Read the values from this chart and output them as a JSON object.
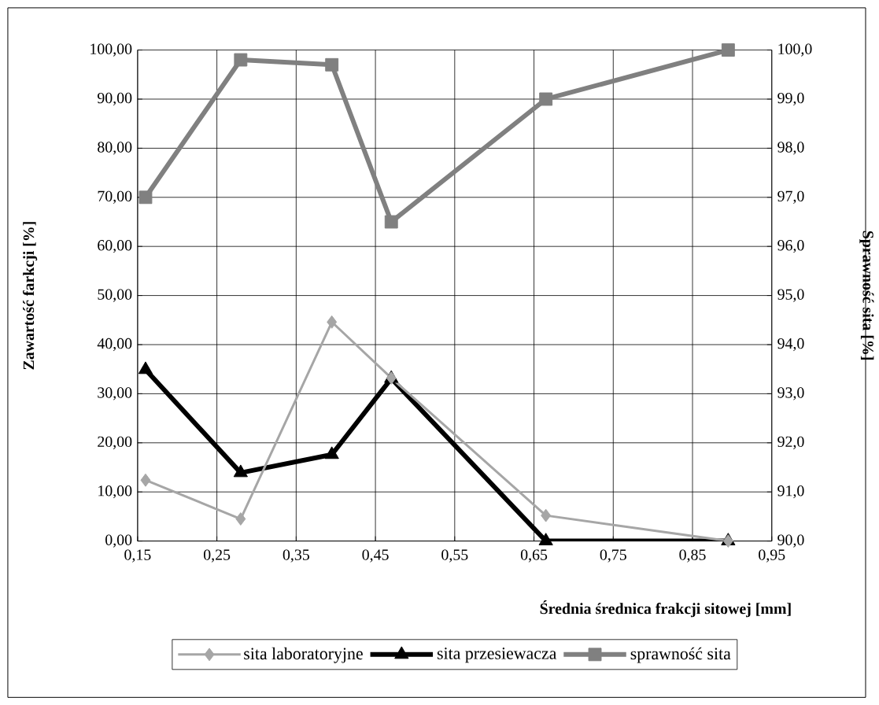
{
  "chart_data": {
    "type": "line",
    "xlabel": "Średnia średnica frakcji sitowej [mm]",
    "ylabel": "Zawartość farkcji [%]",
    "y2label": "Sprawność sita  [%]",
    "x": [
      0.16,
      0.28,
      0.395,
      0.47,
      0.665,
      0.895
    ],
    "series": [
      {
        "name": "sita laboratoryjne",
        "color": "#a6a6a6",
        "marker": "diamond",
        "values": [
          12.4,
          4.5,
          44.6,
          33.2,
          5.2,
          0
        ]
      },
      {
        "name": "sita przesiewacza",
        "color": "#000000",
        "marker": "triangle",
        "values": [
          34.9,
          13.9,
          17.6,
          33.1,
          0,
          0
        ]
      },
      {
        "name": "sprawność sita",
        "color": "#808080",
        "marker": "square",
        "axis": "y2",
        "values": [
          97.0,
          99.8,
          99.7,
          96.5,
          99.0,
          100.0
        ]
      }
    ],
    "xlim": [
      0.15,
      0.95
    ],
    "xticks": [
      {
        "value": 0.15,
        "label": "0,15"
      },
      {
        "value": 0.25,
        "label": "0,25"
      },
      {
        "value": 0.35,
        "label": "0,35"
      },
      {
        "value": 0.45,
        "label": "0,45"
      },
      {
        "value": 0.55,
        "label": "0,55"
      },
      {
        "value": 0.65,
        "label": "0,65"
      },
      {
        "value": 0.75,
        "label": "0,75"
      },
      {
        "value": 0.85,
        "label": "0,85"
      },
      {
        "value": 0.95,
        "label": "0,95"
      }
    ],
    "ylim": [
      0,
      100
    ],
    "yticks": [
      {
        "value": 0,
        "label": "0,00"
      },
      {
        "value": 10,
        "label": "10,00"
      },
      {
        "value": 20,
        "label": "20,00"
      },
      {
        "value": 30,
        "label": "30,00"
      },
      {
        "value": 40,
        "label": "40,00"
      },
      {
        "value": 50,
        "label": "50,00"
      },
      {
        "value": 60,
        "label": "60,00"
      },
      {
        "value": 70,
        "label": "70,00"
      },
      {
        "value": 80,
        "label": "80,00"
      },
      {
        "value": 90,
        "label": "90,00"
      },
      {
        "value": 100,
        "label": "100,00"
      }
    ],
    "y2lim": [
      90,
      100
    ],
    "y2ticks": [
      {
        "value": 90,
        "label": "90,0"
      },
      {
        "value": 91,
        "label": "91,0"
      },
      {
        "value": 92,
        "label": "92,0"
      },
      {
        "value": 93,
        "label": "93,0"
      },
      {
        "value": 94,
        "label": "94,0"
      },
      {
        "value": 95,
        "label": "95,0"
      },
      {
        "value": 96,
        "label": "96,0"
      },
      {
        "value": 97,
        "label": "97,0"
      },
      {
        "value": 98,
        "label": "98,0"
      },
      {
        "value": 99,
        "label": "99,0"
      },
      {
        "value": 100,
        "label": "100,0"
      }
    ],
    "grid": true,
    "legend": "bottom",
    "line_style": "solid"
  }
}
